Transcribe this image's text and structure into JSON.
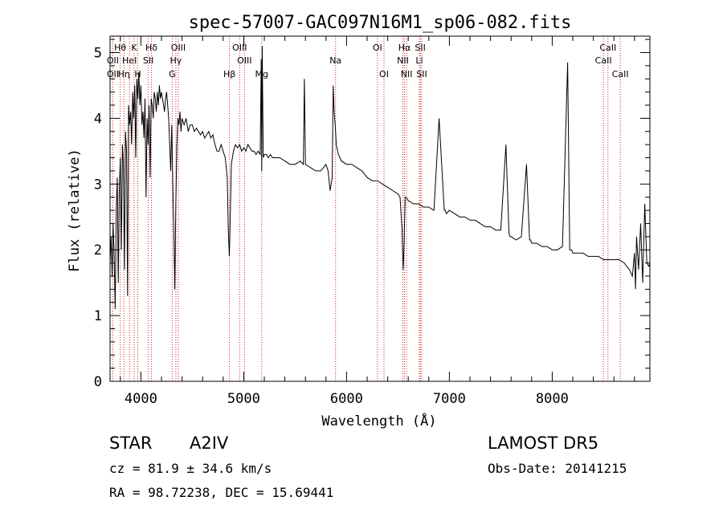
{
  "chart_data": {
    "type": "line",
    "title": "spec-57007-GAC097N16M1_sp06-082.fits",
    "xlabel": "Wavelength (Å)",
    "ylabel": "Flux (relative)",
    "xlim": [
      3700,
      8950
    ],
    "ylim": [
      0,
      5.25
    ],
    "xticks": [
      4000,
      5000,
      6000,
      7000,
      8000
    ],
    "yticks": [
      0,
      1,
      2,
      3,
      4,
      5
    ],
    "grid": false,
    "series": [
      {
        "x": [
          3700,
          3710,
          3720,
          3730,
          3740,
          3750,
          3760,
          3770,
          3780,
          3790,
          3800,
          3810,
          3820,
          3830,
          3840,
          3850,
          3860,
          3870,
          3880,
          3890,
          3900,
          3910,
          3920,
          3930,
          3940,
          3950,
          3960,
          3970,
          3980,
          3990,
          4000,
          4010,
          4020,
          4030,
          4040,
          4050,
          4060,
          4070,
          4080,
          4090,
          4100,
          4110,
          4120,
          4130,
          4140,
          4150,
          4160,
          4170,
          4180,
          4190,
          4200,
          4210,
          4220,
          4230,
          4240,
          4250,
          4260,
          4270,
          4280,
          4290,
          4300,
          4310,
          4320,
          4330,
          4340,
          4350,
          4360,
          4370,
          4380,
          4390,
          4400,
          4420,
          4440,
          4460,
          4480,
          4500,
          4520,
          4540,
          4560,
          4580,
          4600,
          4620,
          4640,
          4660,
          4680,
          4700,
          4720,
          4740,
          4760,
          4780,
          4800,
          4820,
          4840,
          4850,
          4860,
          4870,
          4880,
          4900,
          4920,
          4940,
          4960,
          4980,
          5000,
          5020,
          5040,
          5060,
          5080,
          5100,
          5120,
          5140,
          5160,
          5170,
          5175,
          5180,
          5190,
          5200,
          5220,
          5240,
          5260,
          5280,
          5300,
          5350,
          5400,
          5450,
          5500,
          5550,
          5580,
          5590,
          5600,
          5650,
          5700,
          5750,
          5800,
          5820,
          5840,
          5860,
          5870,
          5880,
          5890,
          5900,
          5920,
          5950,
          6000,
          6050,
          6100,
          6150,
          6200,
          6250,
          6300,
          6350,
          6400,
          6450,
          6500,
          6520,
          6540,
          6550,
          6560,
          6565,
          6570,
          6580,
          6600,
          6650,
          6700,
          6750,
          6800,
          6850,
          6900,
          6950,
          6960,
          6970,
          7000,
          7050,
          7100,
          7150,
          7200,
          7250,
          7300,
          7350,
          7400,
          7450,
          7500,
          7550,
          7580,
          7590,
          7600,
          7650,
          7700,
          7750,
          7780,
          7790,
          7800,
          7850,
          7900,
          7950,
          8000,
          8050,
          8100,
          8150,
          8170,
          8180,
          8190,
          8200,
          8250,
          8300,
          8350,
          8400,
          8450,
          8500,
          8550,
          8600,
          8650,
          8700,
          8750,
          8780,
          8800,
          8810,
          8820,
          8840,
          8860,
          8880,
          8900,
          8920,
          8940,
          8950
        ],
        "y": [
          1.8,
          2.2,
          1.6,
          2.4,
          1.9,
          1.1,
          2.6,
          3.1,
          1.5,
          2.9,
          3.4,
          2.0,
          3.6,
          3.3,
          1.7,
          3.8,
          3.5,
          1.3,
          4.2,
          3.9,
          4.1,
          3.6,
          4.4,
          4.0,
          4.5,
          3.4,
          4.6,
          4.3,
          4.7,
          4.2,
          4.5,
          3.9,
          4.1,
          3.7,
          4.3,
          2.8,
          4.0,
          3.6,
          4.2,
          3.1,
          4.3,
          4.2,
          4.0,
          4.4,
          4.3,
          4.1,
          4.4,
          4.2,
          4.5,
          4.3,
          4.4,
          4.3,
          4.2,
          4.1,
          4.3,
          4.4,
          4.2,
          4.0,
          3.6,
          3.2,
          3.9,
          3.0,
          2.3,
          1.4,
          2.7,
          3.6,
          4.0,
          3.9,
          4.1,
          3.8,
          4.0,
          3.9,
          4.0,
          3.8,
          3.9,
          3.9,
          3.8,
          3.85,
          3.8,
          3.75,
          3.8,
          3.7,
          3.75,
          3.8,
          3.7,
          3.75,
          3.6,
          3.5,
          3.5,
          3.6,
          3.5,
          3.4,
          3.1,
          2.3,
          1.9,
          2.6,
          3.3,
          3.5,
          3.6,
          3.55,
          3.6,
          3.5,
          3.55,
          3.5,
          3.6,
          3.55,
          3.5,
          3.5,
          3.45,
          3.5,
          3.45,
          4.9,
          3.2,
          5.1,
          3.4,
          3.45,
          3.45,
          3.4,
          3.45,
          3.4,
          3.4,
          3.4,
          3.35,
          3.3,
          3.3,
          3.35,
          3.3,
          4.6,
          3.3,
          3.25,
          3.2,
          3.2,
          3.3,
          3.2,
          2.9,
          3.1,
          4.5,
          4.1,
          3.9,
          3.6,
          3.45,
          3.35,
          3.3,
          3.3,
          3.25,
          3.2,
          3.1,
          3.05,
          3.05,
          3.0,
          2.95,
          2.9,
          2.85,
          2.8,
          2.3,
          1.7,
          2.1,
          2.5,
          2.8,
          2.8,
          2.75,
          2.7,
          2.7,
          2.65,
          2.65,
          2.6,
          4.0,
          2.6,
          2.6,
          2.55,
          2.6,
          2.55,
          2.5,
          2.5,
          2.45,
          2.45,
          2.4,
          2.35,
          2.35,
          2.3,
          2.3,
          3.6,
          2.25,
          2.2,
          2.2,
          2.15,
          2.2,
          3.3,
          2.15,
          2.15,
          2.1,
          2.1,
          2.05,
          2.05,
          2.0,
          2.0,
          2.05,
          4.85,
          2.0,
          2.0,
          2.0,
          1.95,
          1.95,
          1.95,
          1.9,
          1.9,
          1.9,
          1.85,
          1.85,
          1.85,
          1.85,
          1.8,
          1.7,
          1.6,
          1.95,
          1.4,
          2.2,
          1.7,
          2.4,
          1.5,
          2.7,
          1.8,
          1.75,
          1.8
        ]
      }
    ],
    "lines": {
      "row1": [
        {
          "name": "Hθ",
          "x": 3799
        },
        {
          "name": "K",
          "x": 3934
        },
        {
          "name": "Hδ",
          "x": 4102
        },
        {
          "name": "OIII",
          "x": 4364
        },
        {
          "name": "OIII",
          "x": 4960
        },
        {
          "name": "OI",
          "x": 6300
        },
        {
          "name": "Hα",
          "x": 6563
        },
        {
          "name": "SII",
          "x": 6717
        },
        {
          "name": "CaII",
          "x": 8542
        }
      ],
      "row2": [
        {
          "name": "OII",
          "x": 3727
        },
        {
          "name": "HeI",
          "x": 3889
        },
        {
          "name": "SII",
          "x": 4072
        },
        {
          "name": "Hγ",
          "x": 4340
        },
        {
          "name": "OIII",
          "x": 5007
        },
        {
          "name": "Na",
          "x": 5893
        },
        {
          "name": "NII",
          "x": 6548
        },
        {
          "name": "Li",
          "x": 6708
        },
        {
          "name": "CaII",
          "x": 8498
        }
      ],
      "row3": [
        {
          "name": "OII",
          "x": 3727
        },
        {
          "name": "Hη",
          "x": 3835
        },
        {
          "name": "H",
          "x": 3970
        },
        {
          "name": "G",
          "x": 4305
        },
        {
          "name": "Hβ",
          "x": 4861
        },
        {
          "name": "Mg",
          "x": 5175
        },
        {
          "name": "OI",
          "x": 6364
        },
        {
          "name": "NII",
          "x": 6584
        },
        {
          "name": "SII",
          "x": 6731
        },
        {
          "name": "CaII",
          "x": 8662
        }
      ]
    }
  },
  "info": {
    "object_class": "STAR",
    "subclass": "A2IV",
    "survey": "LAMOST  DR5",
    "cz": "cz = 81.9 ± 34.6 km/s",
    "obs_date": "Obs-Date: 20141215",
    "coords": "RA =  98.72238, DEC =  15.69441"
  },
  "colors": {
    "axis": "#000000",
    "spectrum": "#000000",
    "line_marker": "#cc2222"
  }
}
